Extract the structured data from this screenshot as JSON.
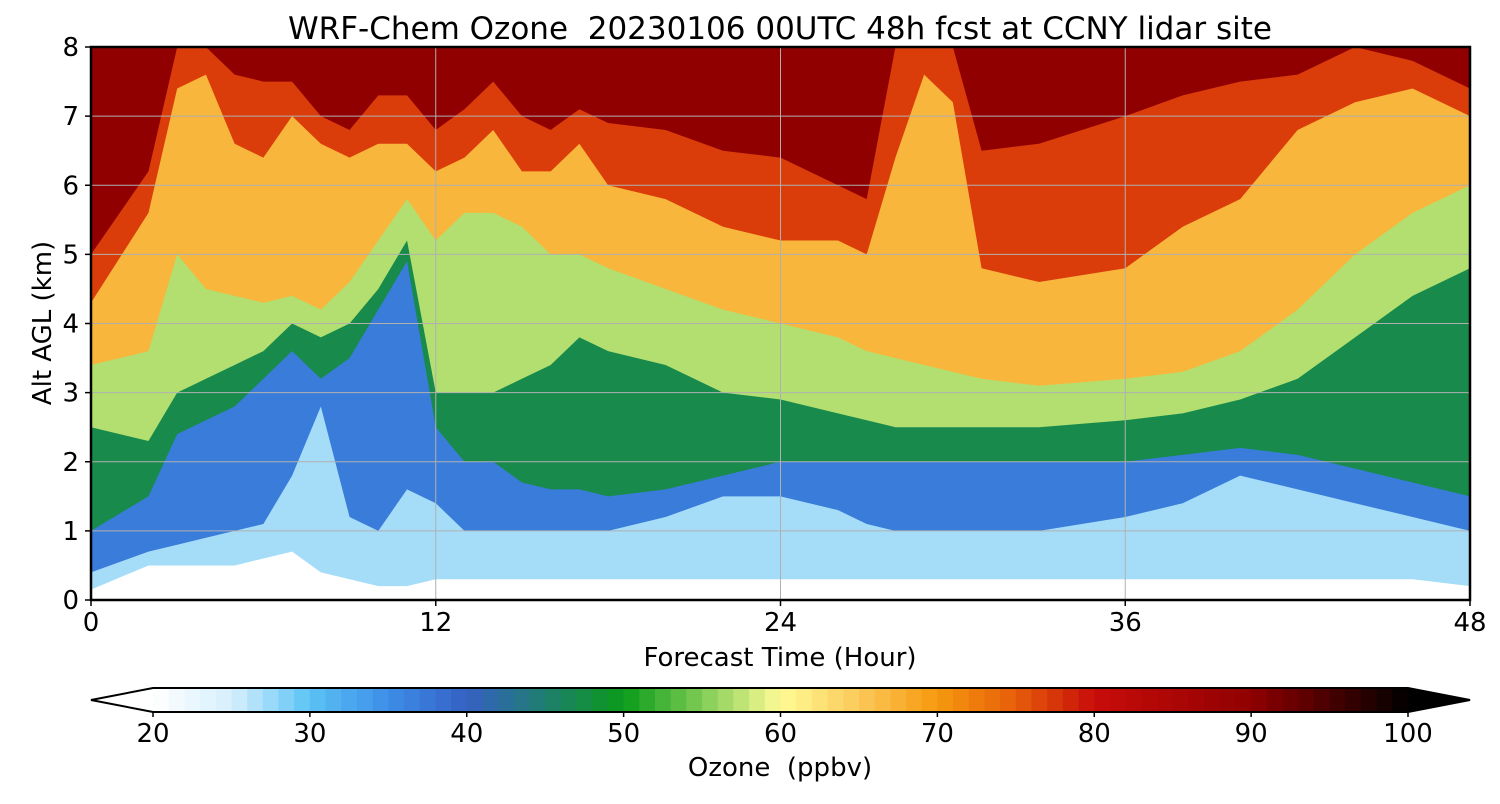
{
  "chart_data": {
    "type": "heatmap",
    "title": "WRF-Chem Ozone  20230106 00UTC 48h fcst at CCNY lidar site",
    "xlabel": "Forecast Time (Hour)",
    "ylabel": "Alt AGL (km)",
    "xlim": [
      0,
      48
    ],
    "ylim": [
      0,
      8
    ],
    "xticks": [
      0,
      12,
      24,
      36,
      48
    ],
    "xtick_labels": [
      "0",
      "12",
      "24",
      "36",
      "48"
    ],
    "yticks": [
      0,
      1,
      2,
      3,
      4,
      5,
      6,
      7,
      8
    ],
    "ytick_labels": [
      "0",
      "1",
      "2",
      "3",
      "4",
      "5",
      "6",
      "7",
      "8"
    ],
    "grid": true,
    "colorbar": {
      "label": "Ozone  (ppbv)",
      "min": 20,
      "max": 100,
      "extend": "both",
      "ticks": [
        20,
        30,
        40,
        50,
        60,
        70,
        80,
        90,
        100
      ],
      "tick_labels": [
        "20",
        "30",
        "40",
        "50",
        "60",
        "70",
        "80",
        "90",
        "100"
      ],
      "colors": [
        {
          "v": 20,
          "c": "#ffffff"
        },
        {
          "v": 25,
          "c": "#d6effd"
        },
        {
          "v": 30,
          "c": "#5bc2f4"
        },
        {
          "v": 35,
          "c": "#3d8ee8"
        },
        {
          "v": 40,
          "c": "#3560c4"
        },
        {
          "v": 45,
          "c": "#1f7e6e"
        },
        {
          "v": 50,
          "c": "#0a9b1a"
        },
        {
          "v": 55,
          "c": "#7fcc55"
        },
        {
          "v": 60,
          "c": "#fffb96"
        },
        {
          "v": 65,
          "c": "#fbc95a"
        },
        {
          "v": 70,
          "c": "#f6990e"
        },
        {
          "v": 75,
          "c": "#e65d0a"
        },
        {
          "v": 80,
          "c": "#c80d0a"
        },
        {
          "v": 90,
          "c": "#900000"
        },
        {
          "v": 100,
          "c": "#000000"
        }
      ],
      "under_color": "#ffffff",
      "over_color": "#000000"
    },
    "contour_boundaries": {
      "description": "Altitudes (km) where ozone crosses each level, at forecast hours x",
      "x": [
        0,
        2,
        3,
        4,
        5,
        6,
        7,
        8,
        9,
        10,
        11,
        12,
        13,
        14,
        15,
        16,
        17,
        18,
        20,
        22,
        24,
        26,
        27,
        28,
        29,
        30,
        31,
        33,
        36,
        38,
        40,
        42,
        44,
        46,
        48
      ],
      "levels": [
        {
          "v": 27,
          "alt": [
            0.15,
            0.5,
            0.5,
            0.5,
            0.5,
            0.6,
            0.7,
            0.4,
            0.3,
            0.2,
            0.2,
            0.3,
            0.3,
            0.3,
            0.3,
            0.3,
            0.3,
            0.3,
            0.3,
            0.3,
            0.3,
            0.3,
            0.3,
            0.3,
            0.3,
            0.3,
            0.3,
            0.3,
            0.3,
            0.3,
            0.3,
            0.3,
            0.3,
            0.3,
            0.2
          ]
        },
        {
          "v": 37,
          "alt": [
            0.4,
            0.7,
            0.8,
            0.9,
            1.0,
            1.1,
            1.8,
            2.8,
            1.2,
            1.0,
            1.6,
            1.4,
            1.0,
            1.0,
            1.0,
            1.0,
            1.0,
            1.0,
            1.2,
            1.5,
            1.5,
            1.3,
            1.1,
            1.0,
            1.0,
            1.0,
            1.0,
            1.0,
            1.2,
            1.4,
            1.8,
            1.6,
            1.4,
            1.2,
            1.0
          ]
        },
        {
          "v": 47,
          "alt": [
            1.0,
            1.5,
            2.4,
            2.6,
            2.8,
            3.2,
            3.6,
            3.2,
            3.5,
            4.2,
            4.9,
            2.5,
            2.0,
            2.0,
            1.7,
            1.6,
            1.6,
            1.5,
            1.6,
            1.8,
            2.0,
            2.0,
            2.0,
            2.0,
            2.0,
            2.0,
            2.0,
            2.0,
            2.0,
            2.1,
            2.2,
            2.1,
            1.9,
            1.7,
            1.5
          ]
        },
        {
          "v": 57,
          "alt": [
            2.5,
            2.3,
            3.0,
            3.2,
            3.4,
            3.6,
            4.0,
            3.8,
            4.0,
            4.5,
            5.2,
            3.0,
            3.0,
            3.0,
            3.2,
            3.4,
            3.8,
            3.6,
            3.4,
            3.0,
            2.9,
            2.7,
            2.6,
            2.5,
            2.5,
            2.5,
            2.5,
            2.5,
            2.6,
            2.7,
            2.9,
            3.2,
            3.8,
            4.4,
            4.8
          ]
        },
        {
          "v": 67,
          "alt": [
            3.4,
            3.6,
            5.0,
            4.5,
            4.4,
            4.3,
            4.4,
            4.2,
            4.6,
            5.2,
            5.8,
            5.2,
            5.6,
            5.6,
            5.4,
            5.0,
            5.0,
            4.8,
            4.5,
            4.2,
            4.0,
            3.8,
            3.6,
            3.5,
            3.4,
            3.3,
            3.2,
            3.1,
            3.2,
            3.3,
            3.6,
            4.2,
            5.0,
            5.6,
            6.0
          ]
        },
        {
          "v": 77,
          "alt": [
            4.3,
            5.6,
            7.4,
            7.6,
            6.6,
            6.4,
            7.0,
            6.6,
            6.4,
            6.6,
            6.6,
            6.2,
            6.4,
            6.8,
            6.2,
            6.2,
            6.6,
            6.0,
            5.8,
            5.4,
            5.2,
            5.2,
            5.0,
            6.4,
            7.6,
            7.2,
            4.8,
            4.6,
            4.8,
            5.4,
            5.8,
            6.8,
            7.2,
            7.4,
            7.0
          ]
        },
        {
          "v": 90,
          "alt": [
            5.0,
            6.2,
            8.0,
            8.0,
            7.6,
            7.5,
            7.5,
            7.0,
            6.8,
            7.3,
            7.3,
            6.8,
            7.1,
            7.5,
            7.0,
            6.8,
            7.1,
            6.9,
            6.8,
            6.5,
            6.4,
            6.0,
            5.8,
            8.0,
            8.0,
            8.0,
            6.5,
            6.6,
            7.0,
            7.3,
            7.5,
            7.6,
            8.0,
            7.8,
            7.4
          ]
        }
      ]
    }
  }
}
